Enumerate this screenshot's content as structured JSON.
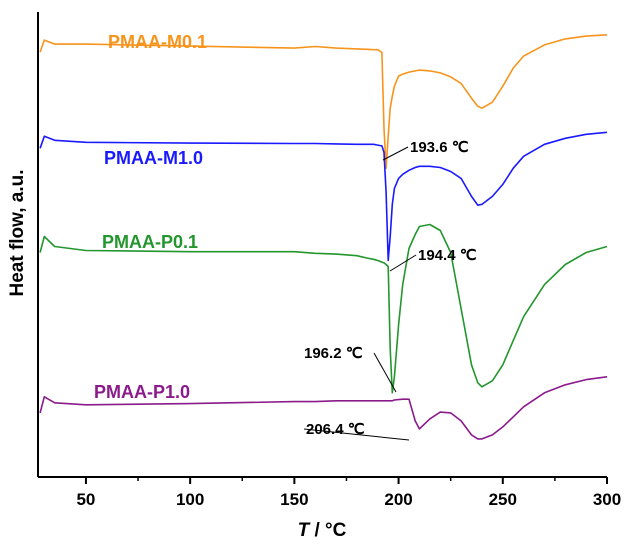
{
  "chart_data": {
    "type": "line",
    "title": "",
    "xlabel_italic": "T",
    "xlabel_rest": " / °C",
    "ylabel": "Heat flow, a.u.",
    "xlim": [
      27,
      300
    ],
    "xticks": [
      50,
      100,
      150,
      200,
      250,
      300
    ],
    "x": [
      28,
      30,
      35,
      50,
      100,
      150,
      160,
      170,
      180,
      185,
      188,
      190,
      192,
      193,
      194,
      195,
      196,
      197,
      198,
      200,
      202,
      205,
      208,
      210,
      215,
      220,
      225,
      230,
      235,
      238,
      240,
      245,
      250,
      255,
      260,
      270,
      280,
      290,
      300
    ],
    "series": [
      {
        "name": "PMAA-M0.1",
        "color": "#f7941d",
        "annotation": "193.6 ℃",
        "values": [
          96,
          99.0,
          98.0,
          98.0,
          97.5,
          97.0,
          97.4,
          97.0,
          96.8,
          96.7,
          96.6,
          96.6,
          95.9,
          77.0,
          67.0,
          75.0,
          82.0,
          85.0,
          87.5,
          90.0,
          90.5,
          91.0,
          91.3,
          91.5,
          91.3,
          90.8,
          89.8,
          88.2,
          84.5,
          82.5,
          82.0,
          83.5,
          87.5,
          92.0,
          95.0,
          97.8,
          99.3,
          100.0,
          100.3
        ]
      },
      {
        "name": "PMAA-M1.0",
        "color": "#1a1aff",
        "annotation": "194.4 ℃",
        "values": [
          72,
          75.0,
          74.0,
          73.5,
          73.3,
          73.2,
          73.2,
          73.1,
          73.0,
          73.0,
          73.0,
          72.8,
          72.6,
          71.0,
          61.0,
          44.0,
          50.0,
          58.0,
          62.0,
          64.5,
          65.5,
          66.5,
          67.2,
          67.5,
          67.5,
          67.2,
          66.2,
          64.5,
          60.0,
          57.8,
          58.0,
          60.0,
          63.0,
          67.0,
          70.0,
          73.0,
          74.5,
          75.5,
          76.0
        ]
      },
      {
        "name": "PMAA-P0.1",
        "color": "#23962e",
        "annotation": "196.2 ℃",
        "values": [
          46,
          50.0,
          47.5,
          46.5,
          46.2,
          46.2,
          45.8,
          45.6,
          45.2,
          44.6,
          44.3,
          44.0,
          43.6,
          43.4,
          43.0,
          42.5,
          22.0,
          11.0,
          15.0,
          28.0,
          38.0,
          47.0,
          50.5,
          52.5,
          53.0,
          51.5,
          46.0,
          32.0,
          18.0,
          13.5,
          12.5,
          14.0,
          18.0,
          24.0,
          30.0,
          38.0,
          43.0,
          46.0,
          47.5
        ]
      },
      {
        "name": "PMAA-P1.0",
        "color": "#8b1a8b",
        "annotation": "206.4 ℃",
        "values": [
          6,
          10.0,
          8.5,
          8.0,
          8.3,
          8.8,
          8.8,
          9.0,
          9.0,
          9.0,
          9.0,
          9.0,
          9.0,
          9.0,
          9.0,
          9.0,
          9.0,
          9.0,
          9.2,
          9.3,
          9.4,
          9.4,
          4.0,
          2.0,
          4.5,
          6.2,
          6.0,
          4.0,
          0.5,
          -0.5,
          -0.5,
          0.5,
          2.5,
          5.0,
          7.5,
          11.0,
          13.0,
          14.3,
          15.0
        ]
      }
    ],
    "ylim": [
      -10,
      106
    ],
    "grid": false,
    "legend": "inline labels"
  }
}
